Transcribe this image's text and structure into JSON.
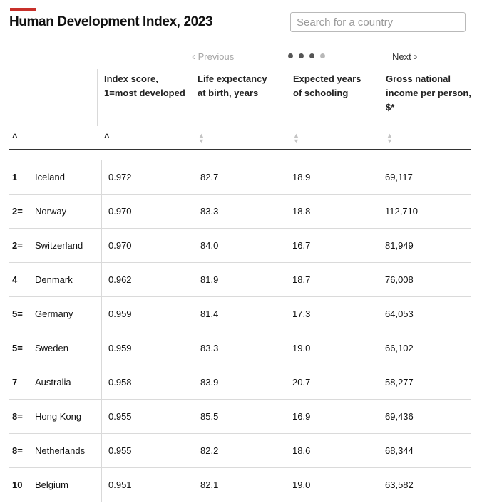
{
  "page": {
    "title": "Human Development Index, 2023",
    "accent_color": "#c8302a"
  },
  "search": {
    "placeholder": "Search for a country",
    "value": ""
  },
  "pager": {
    "prev_label": "Previous",
    "next_label": "Next",
    "page_count": 4,
    "active_pages": [
      1,
      2,
      3
    ]
  },
  "columns": {
    "index": [
      "Index score,",
      "1=most developed"
    ],
    "life": [
      "Life expectancy",
      "at birth, years"
    ],
    "school": [
      "Expected years",
      "of schooling"
    ],
    "income": [
      "Gross national",
      "income per person,",
      "$*"
    ]
  },
  "rows": [
    {
      "rank": "1",
      "country": "Iceland",
      "index": "0.972",
      "life": "82.7",
      "school": "18.9",
      "income": "69,117"
    },
    {
      "rank": "2=",
      "country": "Norway",
      "index": "0.970",
      "life": "83.3",
      "school": "18.8",
      "income": "112,710"
    },
    {
      "rank": "2=",
      "country": "Switzerland",
      "index": "0.970",
      "life": "84.0",
      "school": "16.7",
      "income": "81,949"
    },
    {
      "rank": "4",
      "country": "Denmark",
      "index": "0.962",
      "life": "81.9",
      "school": "18.7",
      "income": "76,008"
    },
    {
      "rank": "5=",
      "country": "Germany",
      "index": "0.959",
      "life": "81.4",
      "school": "17.3",
      "income": "64,053"
    },
    {
      "rank": "5=",
      "country": "Sweden",
      "index": "0.959",
      "life": "83.3",
      "school": "19.0",
      "income": "66,102"
    },
    {
      "rank": "7",
      "country": "Australia",
      "index": "0.958",
      "life": "83.9",
      "school": "20.7",
      "income": "58,277"
    },
    {
      "rank": "8=",
      "country": "Hong Kong",
      "index": "0.955",
      "life": "85.5",
      "school": "16.9",
      "income": "69,436"
    },
    {
      "rank": "8=",
      "country": "Netherlands",
      "index": "0.955",
      "life": "82.2",
      "school": "18.6",
      "income": "68,344"
    },
    {
      "rank": "10",
      "country": "Belgium",
      "index": "0.951",
      "life": "82.1",
      "school": "19.0",
      "income": "63,582"
    }
  ]
}
